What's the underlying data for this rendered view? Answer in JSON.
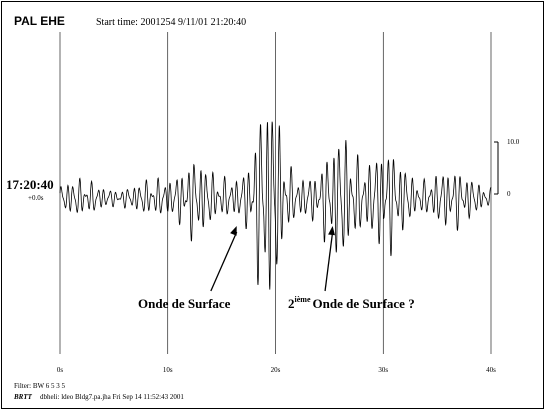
{
  "chart_data": {
    "type": "line",
    "station": "PAL EHE",
    "start_time": "Start time: 2001254  9/11/01 21:20:40",
    "left_time": "17:20:40",
    "left_offset": "+0.0s",
    "x_ticks": [
      "0s",
      "10s",
      "20s",
      "30s",
      "40s"
    ],
    "xlim": [
      0,
      40
    ],
    "scale_labels": [
      "10.0",
      "0"
    ],
    "filter": "Filter: BW 6 5 3 5",
    "footer_prefix": "BRTT",
    "footer": "dbheli: ldeo Bldg7.pa.jha Fri Sep 14 11:52:43 2001",
    "annotations": [
      {
        "text": "Onde de Surface",
        "arrow_from_s": 14.0,
        "arrow_to_s": 16.4
      },
      {
        "base": "2",
        "sup": "ième",
        "text": "Onde de Surface ?",
        "arrow_from_s": 24.6,
        "arrow_to_s": 25.3
      }
    ],
    "grid": true,
    "colors": {
      "trace": "#000000",
      "gridline": "#000000"
    }
  }
}
